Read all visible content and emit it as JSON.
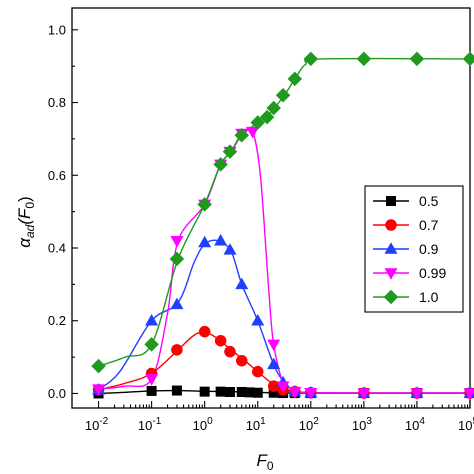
{
  "chart_data": {
    "type": "line",
    "xlabel": "F",
    "xlabel_sub": "0",
    "ylabel": "α",
    "ylabel_sub": "ad",
    "ylabel_arg": "(F",
    "ylabel_arg_sub": "0",
    "ylabel_close": ")",
    "xscale": "log",
    "xlim_log10": [
      -2.5,
      5.0
    ],
    "ylim": [
      -0.04,
      1.06
    ],
    "grid": false,
    "legend_position": "right-middle",
    "x_ticks": [
      {
        "base": "10",
        "exp": "-2",
        "log10": -2
      },
      {
        "base": "10",
        "exp": "-1",
        "log10": -1
      },
      {
        "base": "10",
        "exp": "0",
        "log10": 0
      },
      {
        "base": "10",
        "exp": "1",
        "log10": 1
      },
      {
        "base": "10",
        "exp": "2",
        "log10": 2
      },
      {
        "base": "10",
        "exp": "3",
        "log10": 3
      },
      {
        "base": "10",
        "exp": "4",
        "log10": 4
      },
      {
        "base": "10",
        "exp": "5",
        "log10": 5
      }
    ],
    "y_ticks": [
      {
        "label": "0.0",
        "value": 0.0
      },
      {
        "label": "0.2",
        "value": 0.2
      },
      {
        "label": "0.4",
        "value": 0.4
      },
      {
        "label": "0.6",
        "value": 0.6
      },
      {
        "label": "0.8",
        "value": 0.8
      },
      {
        "label": "1.0",
        "value": 1.0
      }
    ],
    "series": [
      {
        "name": "0.5",
        "color": "#000000",
        "marker": "square",
        "x": [
          0.01,
          0.1,
          0.3,
          1,
          2,
          3,
          5,
          7,
          10,
          20,
          30,
          50,
          100,
          1000,
          10000,
          100000
        ],
        "y": [
          0.0,
          0.007,
          0.008,
          0.005,
          0.005,
          0.004,
          0.004,
          0.003,
          0.002,
          0.002,
          0.001,
          0.001,
          0.001,
          0.001,
          0.001,
          0.001
        ],
        "curve": [
          [
            -2,
            0.0
          ],
          [
            -1.5,
            0.003
          ],
          [
            -1,
            0.007
          ],
          [
            -0.5,
            0.008
          ],
          [
            0,
            0.006
          ],
          [
            0.5,
            0.005
          ],
          [
            1,
            0.003
          ],
          [
            1.5,
            0.001
          ],
          [
            2,
            0.001
          ],
          [
            5,
            0.001
          ]
        ]
      },
      {
        "name": "0.7",
        "color": "#ff0000",
        "marker": "circle",
        "x": [
          0.01,
          0.1,
          0.3,
          1,
          2,
          3,
          5,
          10,
          20,
          30,
          50,
          100,
          1000,
          10000,
          100000
        ],
        "y": [
          0.01,
          0.055,
          0.12,
          0.17,
          0.145,
          0.115,
          0.09,
          0.06,
          0.02,
          0.01,
          0.005,
          0.002,
          0.001,
          0.001,
          0.001
        ],
        "curve": [
          [
            -2,
            0.01
          ],
          [
            -1.5,
            0.028
          ],
          [
            -1,
            0.055
          ],
          [
            -0.5,
            0.12
          ],
          [
            -0.2,
            0.16
          ],
          [
            0,
            0.168
          ],
          [
            0.2,
            0.155
          ],
          [
            0.5,
            0.12
          ],
          [
            0.8,
            0.085
          ],
          [
            1,
            0.06
          ],
          [
            1.3,
            0.025
          ],
          [
            1.6,
            0.008
          ],
          [
            2,
            0.002
          ],
          [
            3,
            0.001
          ],
          [
            5,
            0.001
          ]
        ]
      },
      {
        "name": "0.9",
        "color": "#1f3fff",
        "marker": "triangle-up",
        "x": [
          0.01,
          0.1,
          0.3,
          1,
          2,
          3,
          5,
          10,
          20,
          30,
          50,
          100,
          1000,
          10000,
          100000
        ],
        "y": [
          0.01,
          0.2,
          0.245,
          0.415,
          0.42,
          0.395,
          0.3,
          0.2,
          0.08,
          0.03,
          0.005,
          0.002,
          0.001,
          0.001,
          0.001
        ],
        "curve": [
          [
            -2,
            0.01
          ],
          [
            -1.6,
            0.06
          ],
          [
            -1,
            0.2
          ],
          [
            -0.5,
            0.25
          ],
          [
            -0.2,
            0.36
          ],
          [
            0,
            0.41
          ],
          [
            0.25,
            0.42
          ],
          [
            0.5,
            0.39
          ],
          [
            0.7,
            0.3
          ],
          [
            1,
            0.2
          ],
          [
            1.3,
            0.08
          ],
          [
            1.5,
            0.03
          ],
          [
            1.7,
            0.008
          ],
          [
            2,
            0.002
          ],
          [
            3,
            0.001
          ],
          [
            5,
            0.001
          ]
        ]
      },
      {
        "name": "0.99",
        "color": "#ff00ff",
        "marker": "triangle-down",
        "x": [
          0.01,
          0.1,
          0.3,
          1,
          2,
          3,
          5,
          8,
          20,
          30,
          50,
          100,
          1000,
          10000,
          100000
        ],
        "y": [
          0.012,
          0.04,
          0.42,
          0.52,
          0.63,
          0.665,
          0.715,
          0.72,
          0.135,
          0.02,
          0.005,
          0.002,
          0.001,
          0.001,
          0.001
        ],
        "curve": [
          [
            -2,
            0.012
          ],
          [
            -1.5,
            0.02
          ],
          [
            -1,
            0.04
          ],
          [
            -0.7,
            0.22
          ],
          [
            -0.5,
            0.42
          ],
          [
            0,
            0.52
          ],
          [
            0.3,
            0.63
          ],
          [
            0.5,
            0.665
          ],
          [
            0.7,
            0.715
          ],
          [
            0.9,
            0.72
          ],
          [
            1.05,
            0.6
          ],
          [
            1.2,
            0.3
          ],
          [
            1.3,
            0.135
          ],
          [
            1.5,
            0.02
          ],
          [
            1.7,
            0.005
          ],
          [
            2,
            0.002
          ],
          [
            3,
            0.001
          ],
          [
            5,
            0.001
          ]
        ]
      },
      {
        "name": "1.0",
        "color": "#1f9a1f",
        "marker": "diamond",
        "x": [
          0.01,
          0.1,
          0.3,
          1,
          2,
          3,
          5,
          10,
          15,
          20,
          30,
          50,
          100,
          1000,
          10000,
          100000
        ],
        "y": [
          0.075,
          0.135,
          0.37,
          0.52,
          0.63,
          0.665,
          0.71,
          0.745,
          0.76,
          0.785,
          0.82,
          0.865,
          0.92,
          0.92,
          0.92,
          0.92
        ],
        "curve": [
          [
            -2,
            0.075
          ],
          [
            -1.5,
            0.1
          ],
          [
            -1,
            0.135
          ],
          [
            -0.5,
            0.37
          ],
          [
            0,
            0.52
          ],
          [
            0.3,
            0.63
          ],
          [
            0.5,
            0.665
          ],
          [
            0.7,
            0.71
          ],
          [
            1,
            0.745
          ],
          [
            1.2,
            0.765
          ],
          [
            1.5,
            0.82
          ],
          [
            1.7,
            0.865
          ],
          [
            1.9,
            0.905
          ],
          [
            2.2,
            0.92
          ],
          [
            5,
            0.92
          ]
        ]
      }
    ]
  }
}
